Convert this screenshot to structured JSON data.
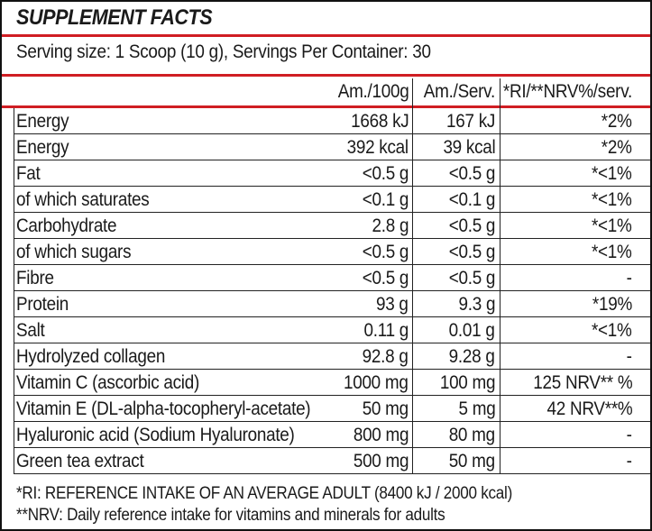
{
  "title": "SUPPLEMENT FACTS",
  "serving": "Serving size: 1 Scoop (10 g), Servings Per Container: 30",
  "headers": {
    "per100": "Am./100g",
    "perServ": "Am./Serv.",
    "ri": "*RI/**NRV%/serv."
  },
  "rows": [
    {
      "name": "Energy",
      "per100": "1668 kJ",
      "perServ": "167 kJ",
      "ri": "*2%"
    },
    {
      "name": "Energy",
      "per100": "392 kcal",
      "perServ": "39 kcal",
      "ri": "*2%"
    },
    {
      "name": "Fat",
      "per100": "<0.5 g",
      "perServ": "<0.5 g",
      "ri": "*<1%"
    },
    {
      "name": "of which saturates",
      "per100": "<0.1 g",
      "perServ": "<0.1 g",
      "ri": "*<1%"
    },
    {
      "name": "Carbohydrate",
      "per100": "2.8 g",
      "perServ": "<0.5 g",
      "ri": "*<1%"
    },
    {
      "name": "of which sugars",
      "per100": "<0.5 g",
      "perServ": "<0.5 g",
      "ri": "*<1%"
    },
    {
      "name": "Fibre",
      "per100": "<0.5 g",
      "perServ": "<0.5 g",
      "ri": "-"
    },
    {
      "name": "Protein",
      "per100": "93 g",
      "perServ": "9.3 g",
      "ri": "*19%"
    },
    {
      "name": "Salt",
      "per100": "0.11 g",
      "perServ": "0.01 g",
      "ri": "*<1%"
    },
    {
      "name": "Hydrolyzed collagen",
      "per100": "92.8 g",
      "perServ": "9.28 g",
      "ri": "-"
    },
    {
      "name": "Vitamin C (ascorbic acid)",
      "per100": "1000 mg",
      "perServ": "100 mg",
      "ri": "125 NRV** %"
    },
    {
      "name": "Vitamin E (DL-alpha-tocopheryl-acetate)",
      "per100": "50 mg",
      "perServ": "5 mg",
      "ri": "42 NRV**%"
    },
    {
      "name": "Hyaluronic acid (Sodium Hyaluronate)",
      "per100": "800 mg",
      "perServ": "80 mg",
      "ri": "-"
    },
    {
      "name": "Green tea extract",
      "per100": "500 mg",
      "perServ": "50 mg",
      "ri": "-"
    }
  ],
  "footnotes": [
    "*RI: REFERENCE INTAKE OF AN AVERAGE ADULT (8400 kJ / 2000 kcal)",
    "**NRV: Daily reference intake for vitamins and minerals for adults"
  ],
  "colors": {
    "accent": "#d01d23",
    "text": "#1a1a1a",
    "rule": "#222222"
  }
}
